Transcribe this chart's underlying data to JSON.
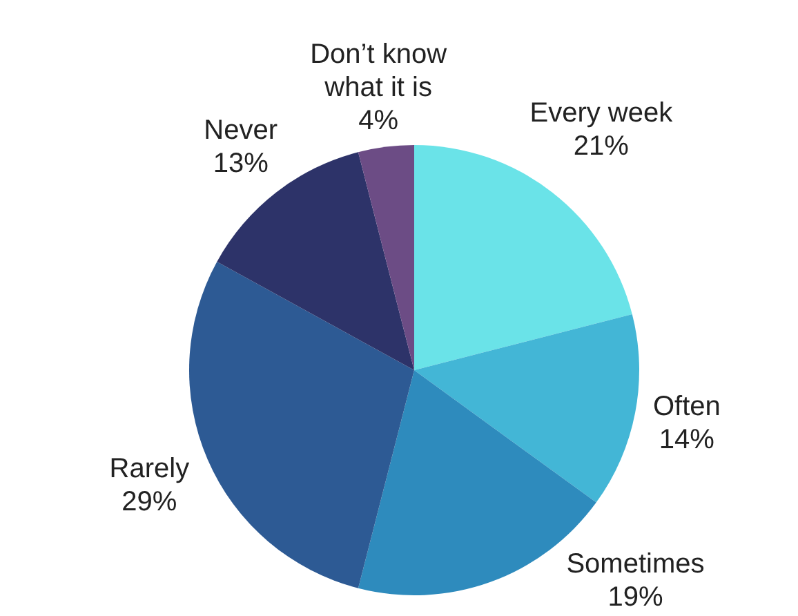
{
  "chart_data": {
    "type": "pie",
    "categories": [
      "Every week",
      "Often",
      "Sometimes",
      "Rarely",
      "Never",
      "Don’t know what it is"
    ],
    "values": [
      21,
      14,
      19,
      29,
      13,
      4
    ],
    "value_labels": [
      "21%",
      "14%",
      "19%",
      "29%",
      "13%",
      "4%"
    ],
    "colors": [
      "#6ae3e8",
      "#43b6d6",
      "#2e8bbd",
      "#2d5a94",
      "#2d3369",
      "#6c4c85"
    ]
  }
}
